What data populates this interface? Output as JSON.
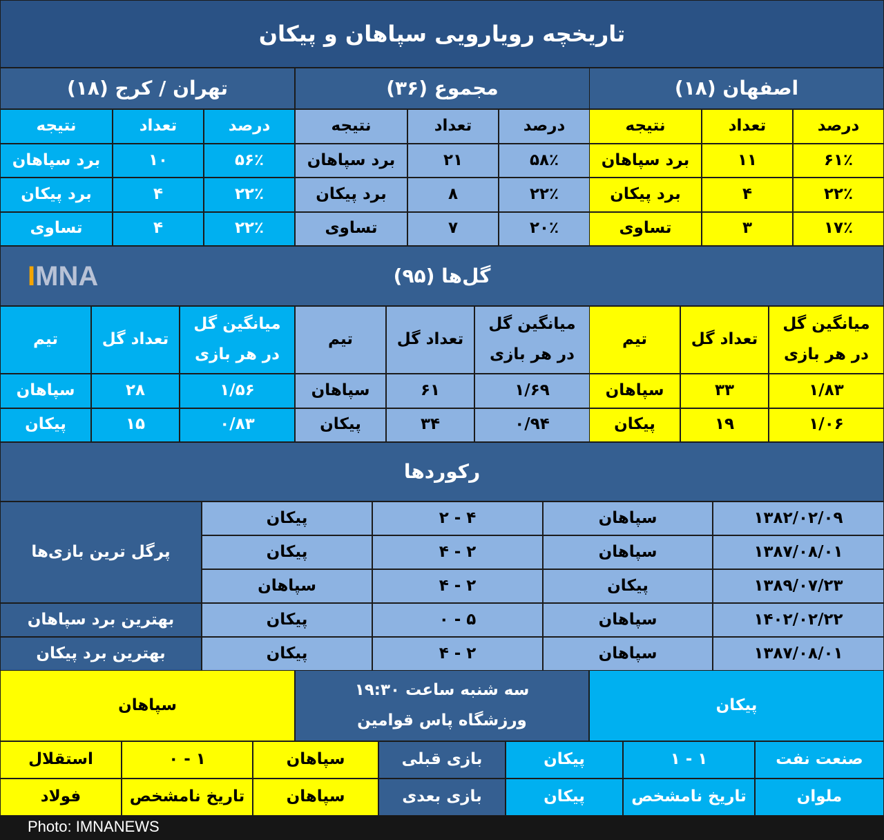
{
  "colors": {
    "header": "#2a5285",
    "section": "#355f91",
    "isfahan": "#ffff00",
    "total": "#8db3e2",
    "tehran": "#00b0f0"
  },
  "title": "تاریخچه رویارویی سپاهان و پیکان",
  "results": {
    "groups": [
      {
        "title": "اصفهان (۱۸)",
        "headers": [
          "درصد",
          "تعداد",
          "نتیجه"
        ],
        "rows": [
          [
            "۶۱٪",
            "۱۱",
            "برد سپاهان"
          ],
          [
            "۲۲٪",
            "۴",
            "برد پیکان"
          ],
          [
            "۱۷٪",
            "۳",
            "تساوی"
          ]
        ]
      },
      {
        "title": "مجموع (۳۶)",
        "headers": [
          "درصد",
          "تعداد",
          "نتیجه"
        ],
        "rows": [
          [
            "۵۸٪",
            "۲۱",
            "برد سپاهان"
          ],
          [
            "۲۲٪",
            "۸",
            "برد پیکان"
          ],
          [
            "۲۰٪",
            "۷",
            "تساوی"
          ]
        ]
      },
      {
        "title": "تهران / کرج (۱۸)",
        "headers": [
          "درصد",
          "تعداد",
          "نتیجه"
        ],
        "rows": [
          [
            "۵۶٪",
            "۱۰",
            "برد سپاهان"
          ],
          [
            "۲۲٪",
            "۴",
            "برد پیکان"
          ],
          [
            "۲۲٪",
            "۴",
            "تساوی"
          ]
        ]
      }
    ]
  },
  "goals": {
    "title": "گل‌ها (۹۵)",
    "logo": "IMNA",
    "headers": [
      "میانگین گل",
      "در هر بازی",
      "تعداد گل",
      "تیم"
    ],
    "groups": [
      {
        "rows": [
          [
            "۱/۸۳",
            "۳۳",
            "سپاهان"
          ],
          [
            "۱/۰۶",
            "۱۹",
            "پیکان"
          ]
        ]
      },
      {
        "rows": [
          [
            "۱/۶۹",
            "۶۱",
            "سپاهان"
          ],
          [
            "۰/۹۴",
            "۳۴",
            "پیکان"
          ]
        ]
      },
      {
        "rows": [
          [
            "۱/۵۶",
            "۲۸",
            "سپاهان"
          ],
          [
            "۰/۸۳",
            "۱۵",
            "پیکان"
          ]
        ]
      }
    ]
  },
  "records": {
    "title": "رکوردها",
    "groups": [
      {
        "label": "پرگل ترین بازی‌ها",
        "rows": [
          [
            "۱۳۸۲/۰۲/۰۹",
            "سپاهان",
            "۲ - ۴",
            "پیکان"
          ],
          [
            "۱۳۸۷/۰۸/۰۱",
            "سپاهان",
            "۴ - ۲",
            "پیکان"
          ],
          [
            "۱۳۸۹/۰۷/۲۳",
            "پیکان",
            "۴ - ۲",
            "سپاهان"
          ]
        ]
      },
      {
        "label": "بهترین برد سپاهان",
        "rows": [
          [
            "۱۴۰۲/۰۲/۲۲",
            "سپاهان",
            "۰ - ۵",
            "پیکان"
          ]
        ]
      },
      {
        "label": "بهترین برد پیکان",
        "rows": [
          [
            "۱۳۸۷/۰۸/۰۱",
            "سپاهان",
            "۴ - ۲",
            "پیکان"
          ]
        ]
      }
    ]
  },
  "match": {
    "home": "پیکان",
    "time": "سه شنبه ساعت ۱۹:۳۰",
    "venue": "ورزشگاه پاس قوامین",
    "away": "سپاهان",
    "prev_label": "بازی قبلی",
    "next_label": "بازی بعدی",
    "home_prev": [
      "صنعت نفت",
      "۱ - ۱",
      "پیکان"
    ],
    "home_next": [
      "ملوان",
      "تاریخ نامشخص",
      "پیکان"
    ],
    "away_prev": [
      "سپاهان",
      "۰ - ۱",
      "استقلال"
    ],
    "away_next": [
      "سپاهان",
      "تاریخ نامشخص",
      "فولاد"
    ]
  },
  "footer": "Photo: IMNANEWS"
}
